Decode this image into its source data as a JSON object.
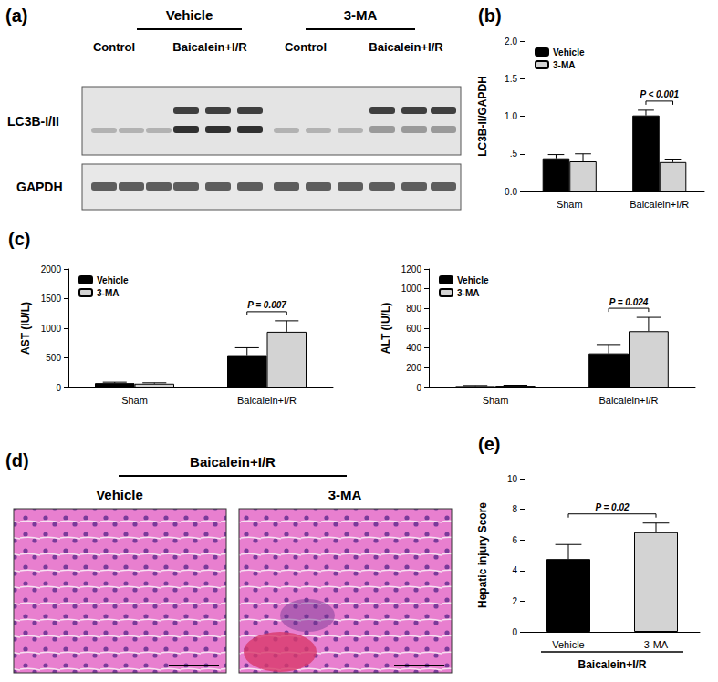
{
  "figure": {
    "panel_a": {
      "label": "(a)",
      "groups": [
        "Vehicle",
        "3-MA"
      ],
      "lanes": [
        "Control",
        "Baicalein+I/R",
        "Control",
        "Baicalein+I/R"
      ],
      "rows": [
        "LC3B-I/II",
        "GAPDH"
      ]
    },
    "panel_d": {
      "label": "(d)",
      "group": "Baicalein+I/R",
      "images": [
        "Vehicle",
        "3-MA"
      ]
    }
  },
  "chart_data": [
    {
      "type": "bar",
      "title": "(b)",
      "ylabel": "LC3B-II/GAPDH",
      "categories": [
        "Sham",
        "Baicalein+I/R"
      ],
      "series": [
        {
          "name": "Vehicle",
          "color": "#000000",
          "values": [
            0.44,
            1.01
          ],
          "errors": [
            0.05,
            0.07
          ]
        },
        {
          "name": "3-MA",
          "color": "#d3d3d3",
          "values": [
            0.4,
            0.39
          ],
          "errors": [
            0.1,
            0.04
          ]
        }
      ],
      "ylim": [
        0,
        2.0
      ],
      "yticks": [
        {
          "value": 0,
          "label": "0.0"
        },
        {
          "value": 0.5,
          "label": ".5"
        },
        {
          "value": 1.0,
          "label": "1.0"
        },
        {
          "value": 1.5,
          "label": "1.5"
        },
        {
          "value": 2.0,
          "label": "2.0"
        }
      ],
      "annotations": [
        {
          "text": "P < 0.001",
          "category": "Baicalein+I/R"
        }
      ],
      "legend": "top-left",
      "grid": false
    },
    {
      "type": "bar",
      "title": "(c)",
      "ylabel": "AST (IU/L)",
      "categories": [
        "Sham",
        "Baicalein+I/R"
      ],
      "series": [
        {
          "name": "Vehicle",
          "color": "#000000",
          "values": [
            75,
            545
          ],
          "errors": [
            15,
            125
          ]
        },
        {
          "name": "3-MA",
          "color": "#d3d3d3",
          "values": [
            65,
            940
          ],
          "errors": [
            15,
            185
          ]
        }
      ],
      "ylim": [
        0,
        2000
      ],
      "yticks": [
        0,
        500,
        1000,
        1500,
        2000
      ],
      "annotations": [
        {
          "text": "P = 0.007",
          "category": "Baicalein+I/R"
        }
      ],
      "legend": "top-left",
      "grid": false
    },
    {
      "type": "bar",
      "ylabel": "ALT (IU/L)",
      "categories": [
        "Sham",
        "Baicalein+I/R"
      ],
      "series": [
        {
          "name": "Vehicle",
          "color": "#000000",
          "values": [
            15,
            345
          ],
          "errors": [
            5,
            90
          ]
        },
        {
          "name": "3-MA",
          "color": "#d3d3d3",
          "values": [
            18,
            570
          ],
          "errors": [
            5,
            140
          ]
        }
      ],
      "ylim": [
        0,
        1200
      ],
      "yticks": [
        0,
        200,
        400,
        600,
        800,
        1000,
        1200
      ],
      "annotations": [
        {
          "text": "P = 0.024",
          "category": "Baicalein+I/R"
        }
      ],
      "legend": "top-left",
      "grid": false
    },
    {
      "type": "bar",
      "title": "(e)",
      "ylabel": "Hepatic injury Score",
      "xlabel": "Baicalein+I/R",
      "categories": [
        "Vehicle",
        "3-MA"
      ],
      "values": [
        4.75,
        6.5
      ],
      "errors": [
        0.95,
        0.6
      ],
      "colors": [
        "#000000",
        "#d3d3d3"
      ],
      "ylim": [
        0,
        10
      ],
      "yticks": [
        0,
        2,
        4,
        6,
        8,
        10
      ],
      "annotations": [
        {
          "text": "P = 0.02",
          "categories": [
            "Vehicle",
            "3-MA"
          ]
        }
      ],
      "grid": false
    }
  ]
}
